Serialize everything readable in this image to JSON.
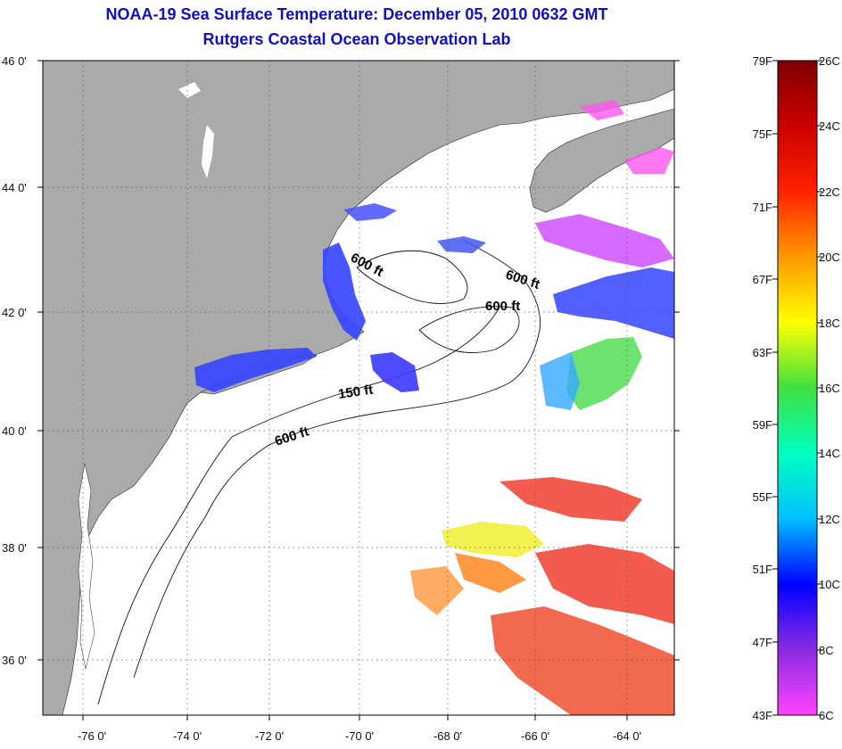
{
  "title": {
    "line1": "NOAA-19 Sea Surface Temperature:  December 05, 2010 0632 GMT",
    "line2": "Rutgers Coastal Ocean Observation Lab"
  },
  "map": {
    "lon_labels": [
      "-76 0'",
      "-74 0'",
      "-72 0'",
      "-70 0'",
      "-68 0'",
      "-66 0'",
      "-64 0'"
    ],
    "lat_labels": [
      "46 0'",
      "44 0'",
      "42 0'",
      "40 0'",
      "38 0'",
      "36 0'"
    ],
    "contour_labels": [
      "600 ft",
      "600 ft",
      "600 ft",
      "150 ft",
      "600 ft"
    ],
    "land_color": "#aaaaaa"
  },
  "colorbar": {
    "f_labels": [
      "79F",
      "75F",
      "71F",
      "67F",
      "63F",
      "59F",
      "55F",
      "51F",
      "47F",
      "43F"
    ],
    "c_labels": [
      "26C",
      "24C",
      "22C",
      "20C",
      "18C",
      "16C",
      "14C",
      "12C",
      "10C",
      "8C",
      "6C"
    ],
    "colors": [
      "#ff44ff",
      "#8a2be2",
      "#0000ff",
      "#00c0ff",
      "#00ffc0",
      "#40e040",
      "#ffff00",
      "#ff9900",
      "#ff2200",
      "#cc0000",
      "#800000"
    ]
  }
}
